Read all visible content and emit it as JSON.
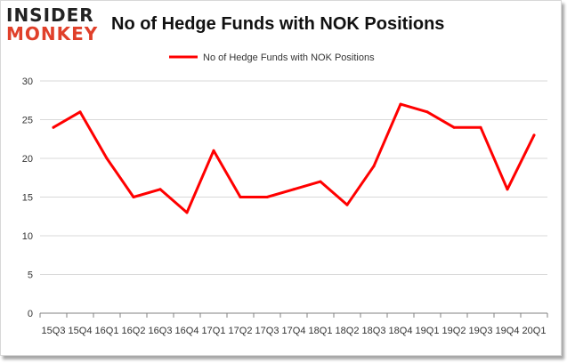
{
  "logo": {
    "line1": "INSIDER",
    "line2": "MONKEY"
  },
  "colors": {
    "series": "#ff0000",
    "grid": "#d9d9d9",
    "axis": "#808080",
    "logo_accent": "#e0402a"
  },
  "chart_data": {
    "type": "line",
    "title": "No of Hedge Funds with NOK Positions",
    "xlabel": "",
    "ylabel": "",
    "ylim": [
      0,
      30
    ],
    "yticks": [
      0,
      5,
      10,
      15,
      20,
      25,
      30
    ],
    "grid": true,
    "legend_position": "top-center",
    "categories": [
      "15Q3",
      "15Q4",
      "16Q1",
      "16Q2",
      "16Q3",
      "16Q4",
      "17Q1",
      "17Q2",
      "17Q3",
      "17Q4",
      "18Q1",
      "18Q2",
      "18Q3",
      "18Q4",
      "19Q1",
      "19Q2",
      "19Q3",
      "19Q4",
      "20Q1"
    ],
    "series": [
      {
        "name": "No of Hedge Funds with NOK Positions",
        "values": [
          24,
          26,
          20,
          15,
          16,
          13,
          21,
          15,
          15,
          16,
          17,
          14,
          19,
          27,
          26,
          24,
          24,
          16,
          23
        ]
      }
    ]
  }
}
